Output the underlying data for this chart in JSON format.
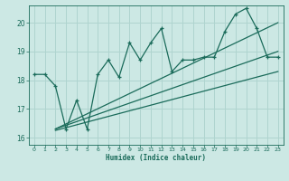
{
  "xlabel": "Humidex (Indice chaleur)",
  "xlim": [
    -0.5,
    23.5
  ],
  "ylim": [
    15.75,
    20.6
  ],
  "yticks": [
    16,
    17,
    18,
    19,
    20
  ],
  "xticks": [
    0,
    1,
    2,
    3,
    4,
    5,
    6,
    7,
    8,
    9,
    10,
    11,
    12,
    13,
    14,
    15,
    16,
    17,
    18,
    19,
    20,
    21,
    22,
    23
  ],
  "bg_color": "#cce8e4",
  "line_color": "#1a6b5a",
  "grid_color": "#afd4cf",
  "main_line": {
    "x": [
      0,
      1,
      2,
      3,
      4,
      5,
      6,
      7,
      8,
      9,
      10,
      11,
      12,
      13,
      14,
      15,
      16,
      17,
      18,
      19,
      20,
      21,
      22,
      23
    ],
    "y": [
      18.2,
      18.2,
      17.8,
      16.3,
      17.3,
      16.3,
      18.2,
      18.7,
      18.1,
      19.3,
      18.7,
      19.3,
      19.8,
      18.3,
      18.7,
      18.7,
      18.8,
      18.8,
      19.7,
      20.3,
      20.5,
      19.8,
      18.8,
      18.8
    ]
  },
  "trend_line1": {
    "x": [
      2,
      23
    ],
    "y": [
      16.3,
      19.0
    ]
  },
  "trend_line2": {
    "x": [
      2,
      23
    ],
    "y": [
      16.3,
      20.0
    ]
  },
  "trend_line3": {
    "x": [
      2,
      23
    ],
    "y": [
      16.25,
      18.3
    ]
  }
}
